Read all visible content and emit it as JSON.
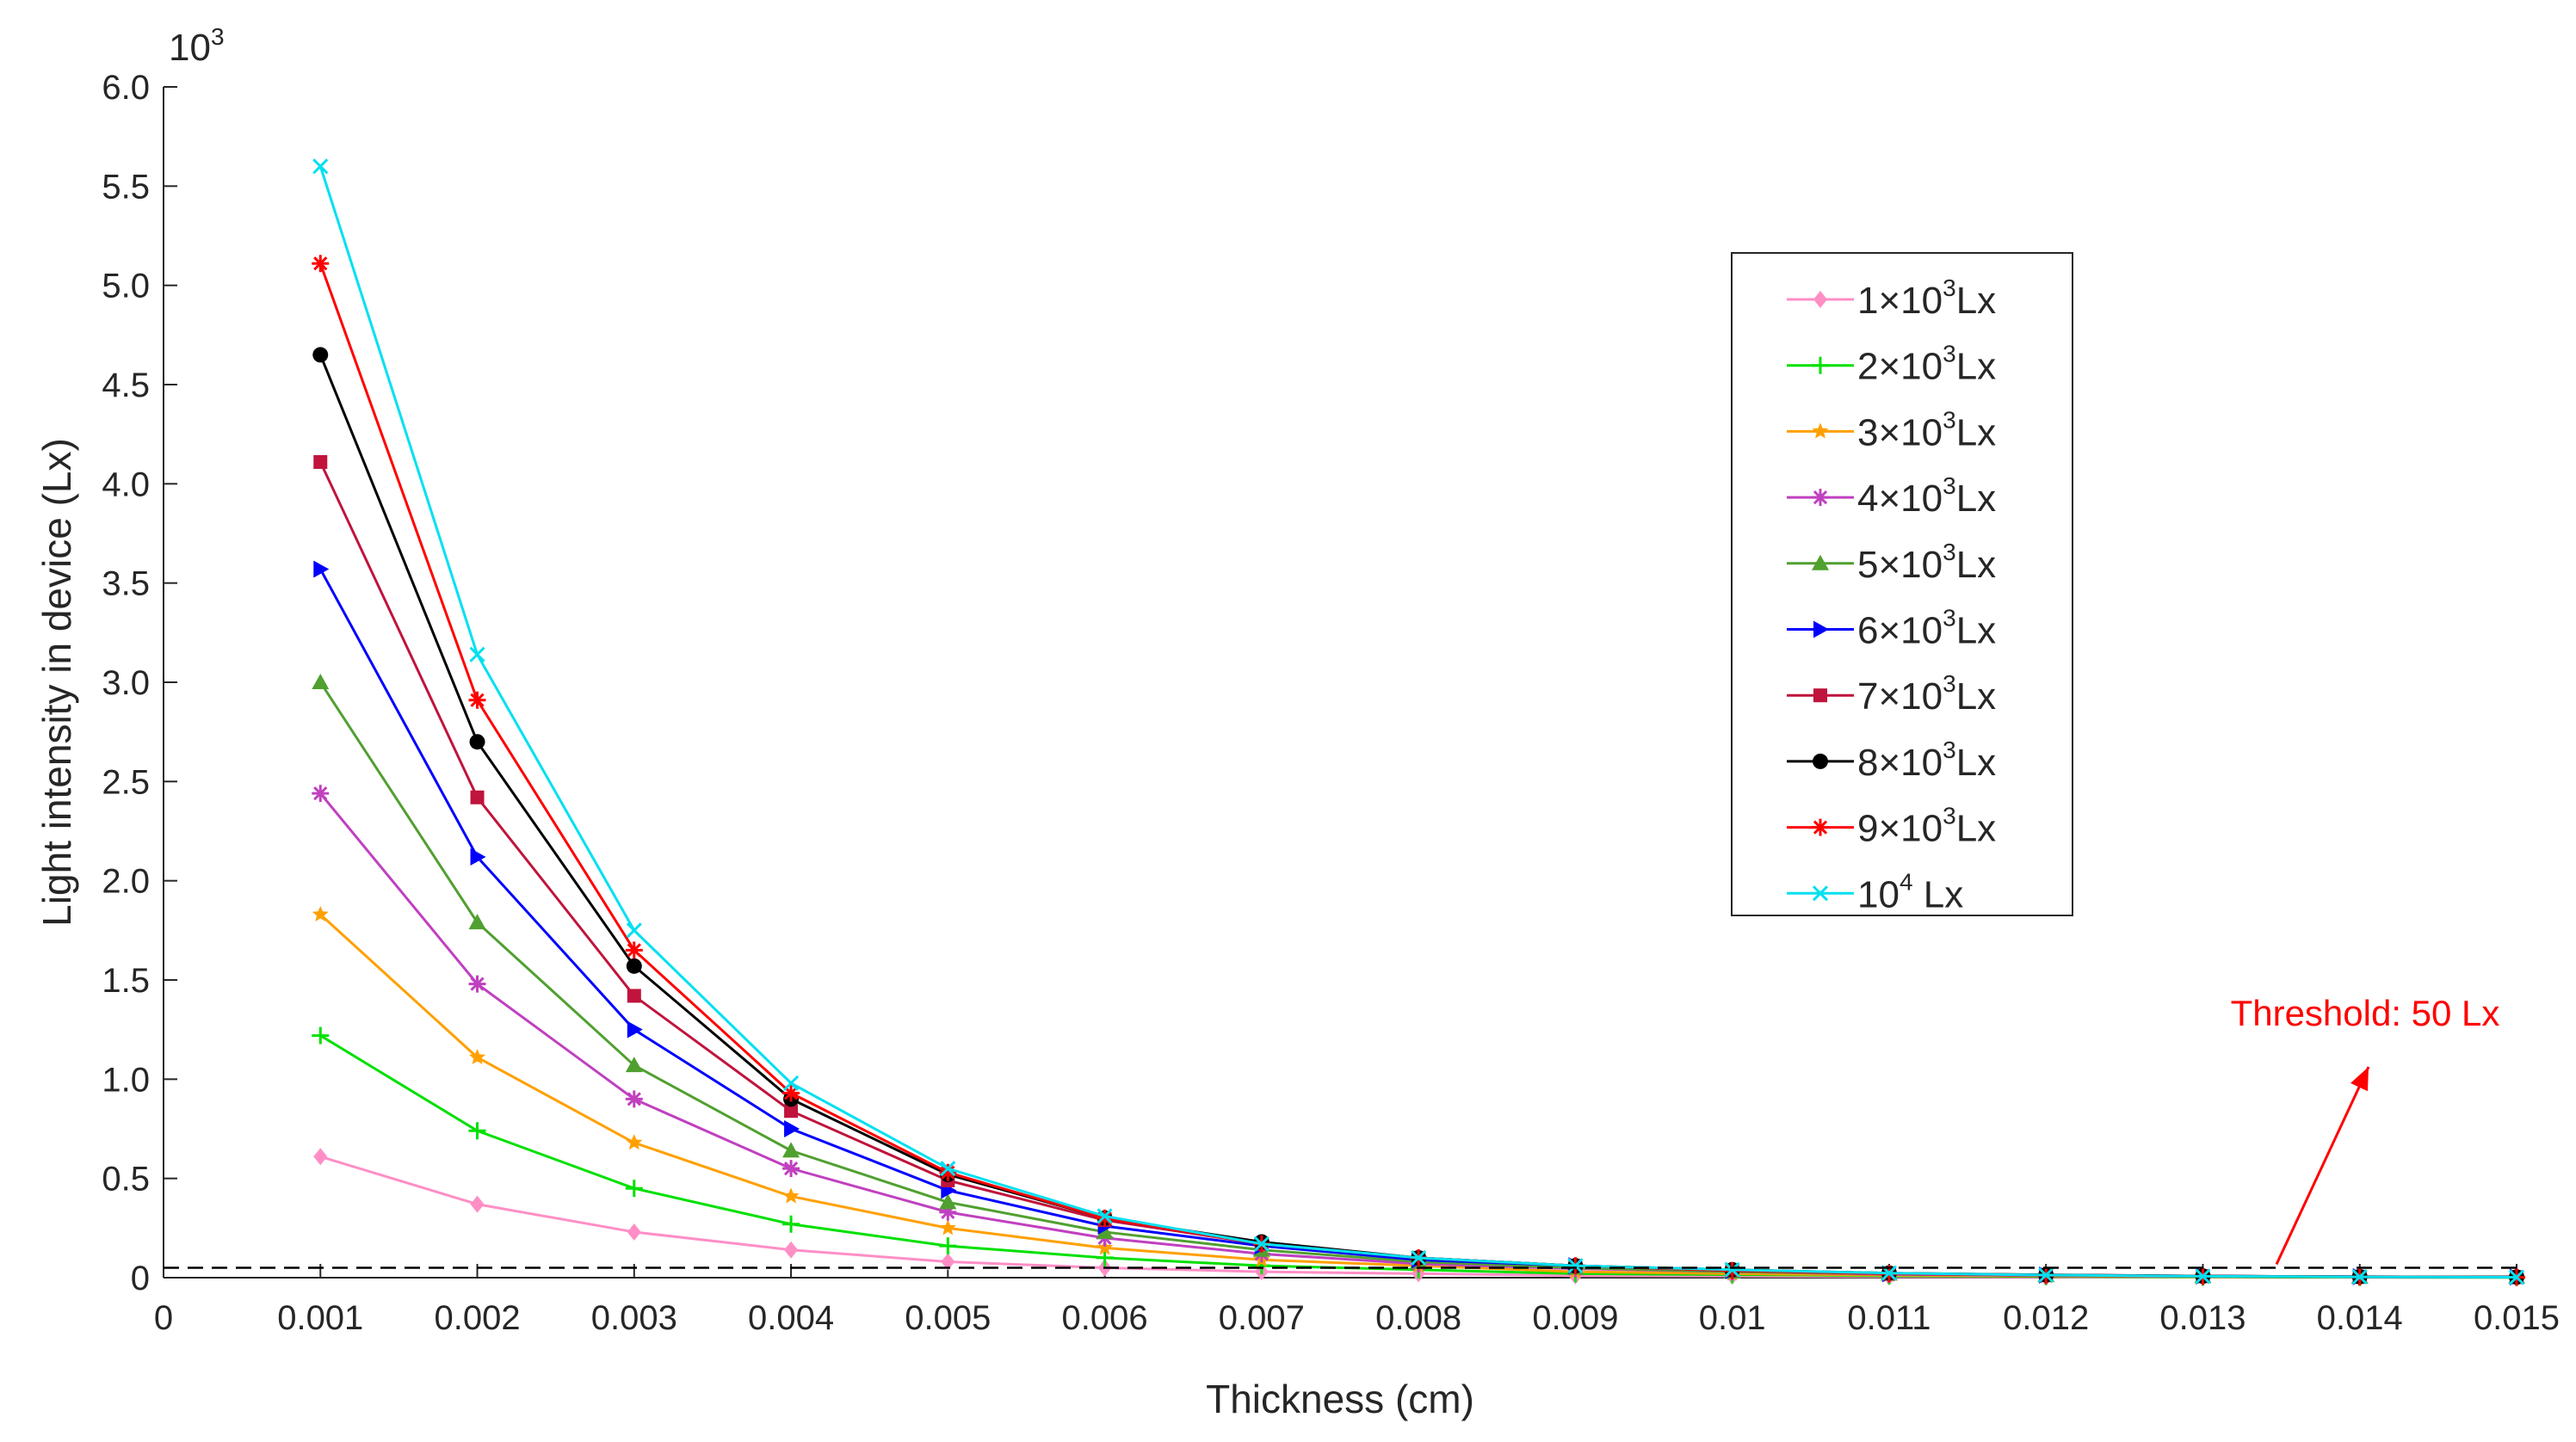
{
  "chart_data": {
    "type": "line",
    "xlabel": "Thickness (cm)",
    "ylabel": "Light intensity in device (Lx)",
    "y_exponent": {
      "base": "10",
      "power": "3"
    },
    "xlim": [
      0,
      0.015
    ],
    "ylim": [
      0,
      6.0
    ],
    "x_ticks": [
      0,
      0.001,
      0.002,
      0.003,
      0.004,
      0.005,
      0.006,
      0.007,
      0.008,
      0.009,
      0.01,
      0.011,
      0.012,
      0.013,
      0.014,
      0.015
    ],
    "x_tick_labels": [
      "0",
      "0.001",
      "0.002",
      "0.003",
      "0.004",
      "0.005",
      "0.006",
      "0.007",
      "0.008",
      "0.009",
      "0.01",
      "0.011",
      "0.012",
      "0.013",
      "0.014",
      "0.015"
    ],
    "y_ticks": [
      0,
      0.5,
      1.0,
      1.5,
      2.0,
      2.5,
      3.0,
      3.5,
      4.0,
      4.5,
      5.0,
      5.5,
      6.0
    ],
    "y_tick_labels": [
      "0",
      "0.5",
      "1.0",
      "1.5",
      "2.0",
      "2.5",
      "3.0",
      "3.5",
      "4.0",
      "4.5",
      "5.0",
      "5.5",
      "6.0"
    ],
    "grid": false,
    "legend_position": "top-right",
    "x": [
      0.001,
      0.002,
      0.003,
      0.004,
      0.005,
      0.006,
      0.007,
      0.008,
      0.009,
      0.01,
      0.011,
      0.012,
      0.013,
      0.014,
      0.015
    ],
    "series": [
      {
        "name": "1×10³Lx",
        "label_base": "1×10",
        "label_sup": "3",
        "label_tail": "Lx",
        "color": "#ff8ec6",
        "marker": "diamond",
        "values": [
          0.61,
          0.37,
          0.23,
          0.14,
          0.08,
          0.05,
          0.03,
          0.02,
          0.01,
          0.008,
          0.005,
          0.003,
          0.002,
          0.001,
          0.001
        ]
      },
      {
        "name": "2×10³Lx",
        "label_base": "2×10",
        "label_sup": "3",
        "label_tail": "Lx",
        "color": "#00e000",
        "marker": "plus",
        "values": [
          1.22,
          0.74,
          0.45,
          0.27,
          0.16,
          0.1,
          0.06,
          0.04,
          0.02,
          0.015,
          0.009,
          0.006,
          0.003,
          0.002,
          0.001
        ]
      },
      {
        "name": "3×10³Lx",
        "label_base": "3×10",
        "label_sup": "3",
        "label_tail": "Lx",
        "color": "#ffa000",
        "marker": "star",
        "values": [
          1.83,
          1.11,
          0.68,
          0.41,
          0.25,
          0.15,
          0.09,
          0.06,
          0.03,
          0.02,
          0.013,
          0.008,
          0.005,
          0.003,
          0.002
        ]
      },
      {
        "name": "4×10³Lx",
        "label_base": "4×10",
        "label_sup": "3",
        "label_tail": "Lx",
        "color": "#c040c0",
        "marker": "asterisk",
        "values": [
          2.44,
          1.48,
          0.9,
          0.55,
          0.33,
          0.2,
          0.12,
          0.07,
          0.045,
          0.03,
          0.017,
          0.01,
          0.006,
          0.004,
          0.002
        ]
      },
      {
        "name": "5×10³Lx",
        "label_base": "5×10",
        "label_sup": "3",
        "label_tail": "Lx",
        "color": "#50a030",
        "marker": "triangle-up",
        "values": [
          3.0,
          1.79,
          1.07,
          0.64,
          0.38,
          0.23,
          0.14,
          0.08,
          0.05,
          0.03,
          0.02,
          0.012,
          0.007,
          0.004,
          0.003
        ]
      },
      {
        "name": "6×10³Lx",
        "label_base": "6×10",
        "label_sup": "3",
        "label_tail": "Lx",
        "color": "#0000ff",
        "marker": "triangle-right",
        "values": [
          3.57,
          2.12,
          1.25,
          0.75,
          0.44,
          0.26,
          0.16,
          0.09,
          0.06,
          0.035,
          0.02,
          0.013,
          0.008,
          0.005,
          0.003
        ]
      },
      {
        "name": "7×10³Lx",
        "label_base": "7×10",
        "label_sup": "3",
        "label_tail": "Lx",
        "color": "#c0143c",
        "marker": "square",
        "values": [
          4.11,
          2.42,
          1.42,
          0.84,
          0.49,
          0.29,
          0.17,
          0.1,
          0.06,
          0.038,
          0.022,
          0.014,
          0.008,
          0.005,
          0.003
        ]
      },
      {
        "name": "8×10³Lx",
        "label_base": "8×10",
        "label_sup": "3",
        "label_tail": "Lx",
        "color": "#000000",
        "marker": "circle",
        "values": [
          4.65,
          2.7,
          1.57,
          0.9,
          0.52,
          0.3,
          0.18,
          0.1,
          0.06,
          0.04,
          0.023,
          0.014,
          0.008,
          0.005,
          0.003
        ]
      },
      {
        "name": "9×10³Lx",
        "label_base": "9×10",
        "label_sup": "3",
        "label_tail": "Lx",
        "color": "#ff0000",
        "marker": "asterisk",
        "values": [
          5.11,
          2.91,
          1.65,
          0.93,
          0.53,
          0.3,
          0.17,
          0.1,
          0.06,
          0.035,
          0.02,
          0.012,
          0.007,
          0.004,
          0.002
        ]
      },
      {
        "name": "10⁴ Lx",
        "label_base": "10",
        "label_sup": "4",
        "label_tail": " Lx",
        "color": "#00e0f0",
        "marker": "x",
        "values": [
          5.6,
          3.14,
          1.75,
          0.98,
          0.55,
          0.31,
          0.17,
          0.1,
          0.06,
          0.04,
          0.023,
          0.013,
          0.007,
          0.004,
          0.002
        ]
      }
    ],
    "threshold": {
      "value": 0.05,
      "label": "Threshold: 50 Lx",
      "line_color": "#000000",
      "annotation_color": "#ff0000"
    }
  }
}
